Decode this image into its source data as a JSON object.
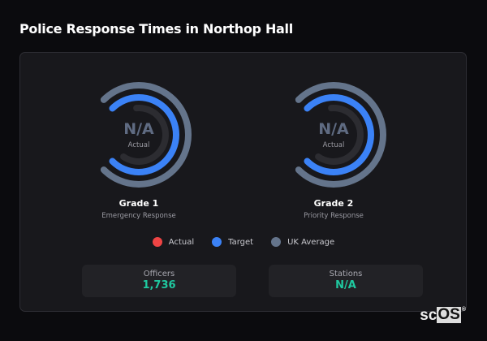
{
  "title": "Police Response Times in Northop Hall",
  "gauges": [
    {
      "value": "N/A",
      "value_label": "Actual",
      "name": "Grade 1",
      "description": "Emergency Response"
    },
    {
      "value": "N/A",
      "value_label": "Actual",
      "name": "Grade 2",
      "description": "Priority Response"
    }
  ],
  "legend": [
    {
      "label": "Actual",
      "color": "#ef4444"
    },
    {
      "label": "Target",
      "color": "#3b82f6"
    },
    {
      "label": "UK Average",
      "color": "#64748b"
    }
  ],
  "stats": [
    {
      "label": "Officers",
      "value": "1,736"
    },
    {
      "label": "Stations",
      "value": "N/A"
    }
  ],
  "colors": {
    "uk_average_ring": "#64748b",
    "target_ring": "#3b82f6",
    "actual_track": "#2c2c31",
    "stat_value": "#1fc9a0"
  },
  "logo": {
    "text_left": "sc",
    "text_boxed": "OS",
    "mark": "®"
  }
}
